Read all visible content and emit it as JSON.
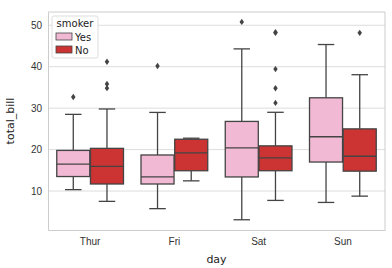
{
  "chart_data": {
    "type": "box",
    "x_label": "day",
    "y_label": "total_bill",
    "categories": [
      "Thur",
      "Fri",
      "Sat",
      "Sun"
    ],
    "ylim": [
      0.6,
      53.2
    ],
    "yticks": [
      10,
      20,
      30,
      40,
      50
    ],
    "grid": true,
    "legend": "upper left",
    "legend_title": "smoker",
    "series": [
      {
        "name": "Yes",
        "color": "#f1b9d3",
        "boxes": [
          {
            "low": 10.34,
            "q1": 13.5,
            "median": 16.5,
            "q3": 19.8,
            "high": 28.5,
            "outliers": [
              32.68
            ]
          },
          {
            "low": 5.75,
            "q1": 11.7,
            "median": 13.4,
            "q3": 18.7,
            "high": 28.97,
            "outliers": [
              40.17
            ]
          },
          {
            "low": 3.07,
            "q1": 13.4,
            "median": 20.4,
            "q3": 26.8,
            "high": 44.3,
            "outliers": [
              50.81
            ]
          },
          {
            "low": 7.25,
            "q1": 17.0,
            "median": 23.1,
            "q3": 32.5,
            "high": 45.35,
            "outliers": []
          }
        ]
      },
      {
        "name": "No",
        "color": "#cc3333",
        "boxes": [
          {
            "low": 7.51,
            "q1": 11.7,
            "median": 15.95,
            "q3": 20.3,
            "high": 29.8,
            "outliers": [
              34.83,
              35.83,
              41.19
            ]
          },
          {
            "low": 12.46,
            "q1": 14.9,
            "median": 19.2,
            "q3": 22.5,
            "high": 22.75,
            "outliers": []
          },
          {
            "low": 7.74,
            "q1": 14.9,
            "median": 18.0,
            "q3": 20.9,
            "high": 29.0,
            "outliers": [
              31.27,
              34.81,
              39.42,
              48.17,
              48.33
            ]
          },
          {
            "low": 8.77,
            "q1": 14.8,
            "median": 18.4,
            "q3": 25.0,
            "high": 38.07,
            "outliers": [
              48.17
            ]
          }
        ]
      }
    ]
  }
}
